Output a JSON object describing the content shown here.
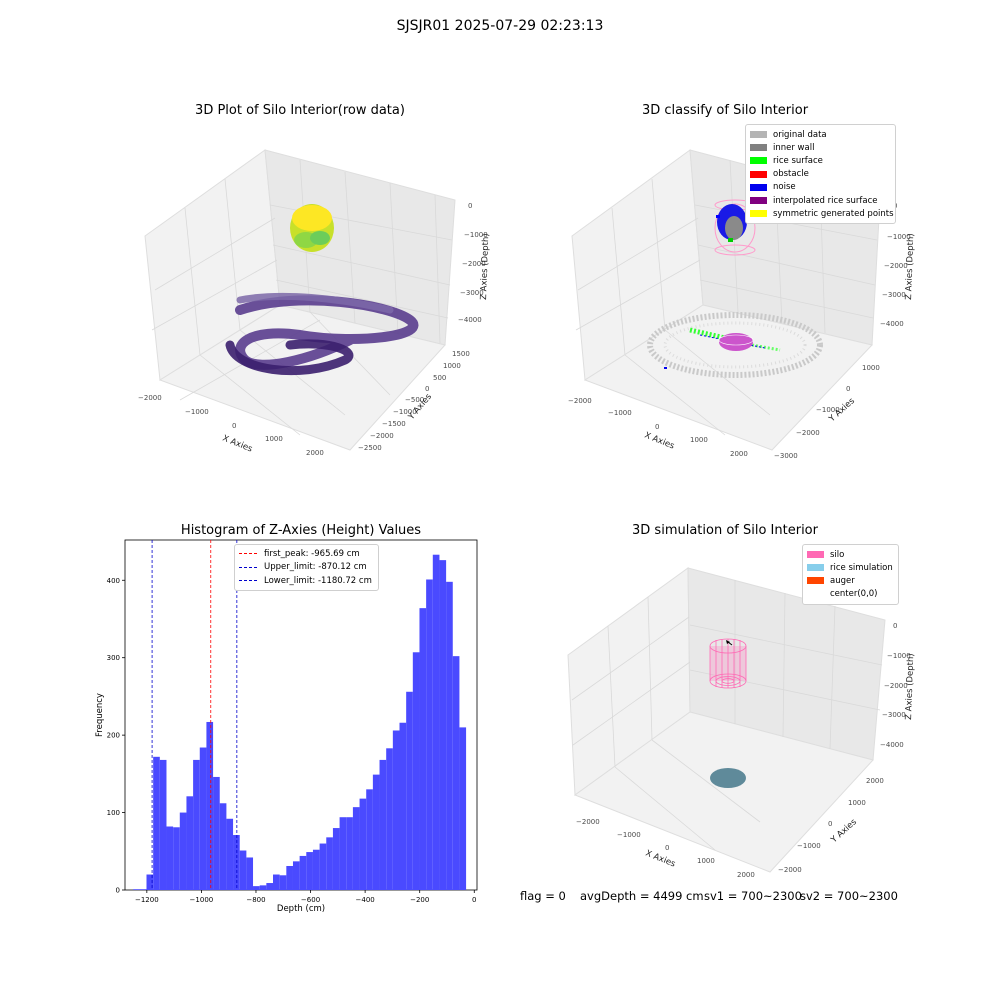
{
  "figure": {
    "title": "SJSJR01 2025-07-29 02:23:13"
  },
  "chart_data": [
    {
      "type": "scatter",
      "title": "3D Plot of Silo Interior(row data)",
      "xlabel": "X Axies",
      "ylabel": "Y Axies",
      "zlabel": "Z Axies (Depth)",
      "x_ticks": [
        "−2000",
        "−1000",
        "0",
        "1000",
        "2000"
      ],
      "y_ticks": [
        "1500",
        "1000",
        "500",
        "0",
        "−500",
        "−1000",
        "−1500",
        "−2000",
        "−2500"
      ],
      "z_ticks": [
        "0",
        "−1000",
        "−2000",
        "−3000",
        "−4000"
      ],
      "xlim": [
        -2300,
        2300
      ],
      "ylim": [
        -2700,
        1600
      ],
      "zlim": [
        -4500,
        300
      ]
    },
    {
      "type": "scatter",
      "title": "3D classify of Silo Interior",
      "xlabel": "X Axies",
      "ylabel": "Y Axies",
      "zlabel": "Z Axies (Depth)",
      "x_ticks": [
        "−2000",
        "−1000",
        "0",
        "1000",
        "2000"
      ],
      "y_ticks": [
        "1000",
        "0",
        "−1000",
        "−2000",
        "−3000"
      ],
      "z_ticks": [
        "0",
        "−1000",
        "−2000",
        "−3000",
        "−4000"
      ],
      "legend": {
        "position": "top-right",
        "entries": [
          {
            "label": "original data",
            "color": "#b4b4b4"
          },
          {
            "label": "inner wall",
            "color": "#808080"
          },
          {
            "label": "rice surface",
            "color": "#00ff00"
          },
          {
            "label": "obstacle",
            "color": "#ff0000"
          },
          {
            "label": "noise",
            "color": "#0000ee"
          },
          {
            "label": "interpolated rice surface",
            "color": "#800080"
          },
          {
            "label": "symmetric generated points",
            "color": "#ffff00"
          }
        ]
      }
    },
    {
      "type": "bar",
      "title": "Histogram of Z-Axies (Height) Values",
      "xlabel": "Depth (cm)",
      "ylabel": "Frequency",
      "xlim": [
        -1280,
        10
      ],
      "ylim": [
        0,
        452
      ],
      "x_ticks": [
        -1200,
        -1000,
        -800,
        -600,
        -400,
        -200,
        0
      ],
      "x_tick_labels": [
        "−1200",
        "−1000",
        "−800",
        "−600",
        "−400",
        "−200",
        "0"
      ],
      "y_ticks": [
        0,
        100,
        200,
        300,
        400
      ],
      "y_tick_labels": [
        "0",
        "100",
        "200",
        "300",
        "400"
      ],
      "bin_start": -1250,
      "bin_width": 24.4,
      "values": [
        1,
        1,
        20,
        172,
        168,
        82,
        81,
        100,
        121,
        168,
        184,
        217,
        146,
        112,
        92,
        71,
        51,
        42,
        5,
        6,
        9,
        20,
        19,
        31,
        37,
        44,
        49,
        52,
        60,
        68,
        80,
        94,
        94,
        107,
        118,
        130,
        149,
        168,
        183,
        206,
        216,
        256,
        307,
        364,
        401,
        433,
        426,
        398,
        302,
        210
      ],
      "bar_color": "#4a4aff",
      "vlines": [
        {
          "label": "first_peak: -965.69 cm",
          "x": -965.69,
          "color": "#ff0000"
        },
        {
          "label": "Upper_limit: -870.12 cm",
          "x": -870.12,
          "color": "#0000cc"
        },
        {
          "label": "Lower_limit: -1180.72 cm",
          "x": -1180.72,
          "color": "#0000cc"
        }
      ],
      "legend": {
        "position": "top-center"
      }
    },
    {
      "type": "scatter",
      "title": "3D simulation of Silo Interior",
      "xlabel": "X Axies",
      "ylabel": "Y Axies",
      "zlabel": "Z Axies (Depth)",
      "x_ticks": [
        "−2000",
        "−1000",
        "0",
        "1000",
        "2000"
      ],
      "y_ticks": [
        "2000",
        "1000",
        "0",
        "−1000",
        "−2000"
      ],
      "z_ticks": [
        "0",
        "−1000",
        "−2000",
        "−3000",
        "−4000"
      ],
      "legend": {
        "position": "top-right",
        "entries": [
          {
            "label": "silo",
            "color": "#ff69b4"
          },
          {
            "label": "rice simulation",
            "color": "#87ceeb"
          },
          {
            "label": "auger",
            "color": "#ff4500"
          },
          {
            "label": "center(0,0)",
            "color": "#ffffff"
          }
        ]
      }
    }
  ],
  "footer": {
    "flag": "flag = 0",
    "avg_depth": "avgDepth = 4499 cm",
    "sv1": "sv1 = 700~2300",
    "sv2": "sv2 = 700~2300"
  }
}
